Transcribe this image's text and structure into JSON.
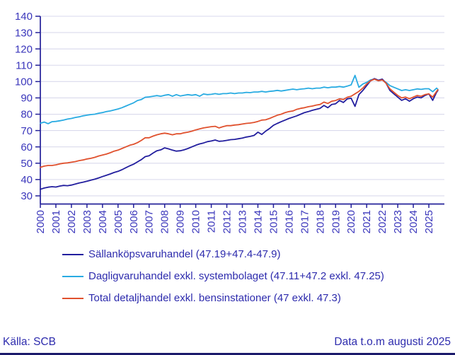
{
  "chart_data": {
    "type": "line",
    "title": "",
    "xlabel": "",
    "ylabel": "",
    "grid": "horizontal",
    "legend_position": "bottom-left",
    "ylim": [
      25,
      140
    ],
    "xlim": [
      2000,
      2026
    ],
    "yticks": [
      30,
      40,
      50,
      60,
      70,
      80,
      90,
      100,
      110,
      120,
      130,
      140
    ],
    "xticks": [
      2000,
      2001,
      2002,
      2003,
      2004,
      2005,
      2006,
      2007,
      2008,
      2009,
      2010,
      2011,
      2012,
      2013,
      2014,
      2015,
      2016,
      2017,
      2018,
      2019,
      2020,
      2021,
      2022,
      2023,
      2024,
      2025
    ],
    "x_note": "monthly index series shown; sampled quarterly here, last point = aug 2025",
    "x": [
      2000,
      2000.25,
      2000.5,
      2000.75,
      2001,
      2001.25,
      2001.5,
      2001.75,
      2002,
      2002.25,
      2002.5,
      2002.75,
      2003,
      2003.25,
      2003.5,
      2003.75,
      2004,
      2004.25,
      2004.5,
      2004.75,
      2005,
      2005.25,
      2005.5,
      2005.75,
      2006,
      2006.25,
      2006.5,
      2006.75,
      2007,
      2007.25,
      2007.5,
      2007.75,
      2008,
      2008.25,
      2008.5,
      2008.75,
      2009,
      2009.25,
      2009.5,
      2009.75,
      2010,
      2010.25,
      2010.5,
      2010.75,
      2011,
      2011.25,
      2011.5,
      2011.75,
      2012,
      2012.25,
      2012.5,
      2012.75,
      2013,
      2013.25,
      2013.5,
      2013.75,
      2014,
      2014.25,
      2014.5,
      2014.75,
      2015,
      2015.25,
      2015.5,
      2015.75,
      2016,
      2016.25,
      2016.5,
      2016.75,
      2017,
      2017.25,
      2017.5,
      2017.75,
      2018,
      2018.25,
      2018.5,
      2018.75,
      2019,
      2019.25,
      2019.5,
      2019.75,
      2020,
      2020.25,
      2020.5,
      2020.75,
      2021,
      2021.25,
      2021.5,
      2021.75,
      2022,
      2022.25,
      2022.5,
      2022.75,
      2023,
      2023.25,
      2023.5,
      2023.75,
      2024,
      2024.25,
      2024.5,
      2024.75,
      2025,
      2025.25,
      2025.5,
      2025.58
    ],
    "series": [
      {
        "name": "Sällanköpsvaruhandel (47.19+47.4-47.9)",
        "color": "#221e9e",
        "values": [
          34.0,
          34.8,
          35.3,
          35.6,
          35.4,
          36.0,
          36.4,
          36.2,
          36.6,
          37.2,
          37.9,
          38.4,
          39.0,
          39.6,
          40.2,
          41.0,
          41.8,
          42.6,
          43.4,
          44.3,
          45.0,
          46.0,
          47.2,
          48.4,
          49.4,
          50.8,
          52.2,
          54.0,
          54.6,
          56.2,
          57.6,
          58.2,
          59.4,
          58.8,
          58.0,
          57.4,
          57.6,
          58.2,
          59.0,
          60.0,
          61.0,
          61.8,
          62.4,
          63.2,
          63.6,
          64.2,
          63.4,
          63.6,
          64.0,
          64.4,
          64.6,
          65.0,
          65.4,
          66.0,
          66.4,
          67.0,
          69.0,
          67.6,
          69.6,
          71.2,
          73.2,
          74.4,
          75.4,
          76.4,
          77.4,
          78.2,
          79.0,
          80.0,
          81.0,
          81.6,
          82.4,
          83.0,
          83.6,
          85.4,
          84.0,
          86.0,
          86.4,
          88.4,
          87.2,
          89.4,
          89.8,
          84.8,
          92.0,
          94.5,
          97.5,
          100.5,
          101.8,
          100.8,
          101.5,
          99.0,
          94.5,
          92.5,
          90.5,
          88.5,
          89.5,
          88.0,
          89.5,
          90.5,
          90.0,
          91.5,
          92.5,
          88.5,
          93.5,
          94.5
        ]
      },
      {
        "name": "Dagligvaruhandel exkl. systembolaget (47.11+47.2 exkl. 47.25)",
        "color": "#29abe2",
        "values": [
          74.5,
          75.2,
          74.2,
          75.4,
          75.6,
          76.0,
          76.4,
          77.0,
          77.4,
          78.0,
          78.4,
          79.0,
          79.4,
          79.8,
          80.0,
          80.6,
          81.0,
          81.6,
          82.0,
          82.6,
          83.2,
          84.0,
          85.0,
          86.0,
          87.0,
          88.4,
          89.0,
          90.4,
          90.6,
          91.0,
          91.4,
          91.0,
          91.6,
          92.0,
          91.0,
          92.0,
          91.2,
          91.6,
          92.0,
          91.6,
          92.0,
          91.0,
          92.4,
          92.0,
          92.2,
          92.6,
          92.2,
          92.6,
          92.6,
          93.0,
          92.6,
          93.0,
          93.0,
          93.4,
          93.2,
          93.6,
          93.6,
          94.0,
          93.6,
          94.0,
          94.2,
          94.6,
          94.2,
          94.6,
          95.0,
          95.4,
          95.0,
          95.4,
          95.6,
          96.0,
          95.6,
          96.0,
          96.0,
          96.6,
          96.2,
          96.6,
          96.6,
          97.0,
          96.6,
          97.2,
          98.0,
          103.8,
          96.5,
          98.5,
          99.5,
          101.0,
          101.5,
          100.5,
          101.0,
          99.5,
          97.5,
          96.5,
          95.5,
          94.5,
          95.0,
          94.5,
          95.0,
          95.5,
          95.2,
          95.6,
          95.6,
          93.8,
          96.0,
          95.2
        ]
      },
      {
        "name": "Total detaljhandel exkl. bensinstationer (47 exkl. 47.3)",
        "color": "#e0512e",
        "values": [
          47.5,
          48.2,
          48.6,
          48.6,
          49.0,
          49.6,
          50.0,
          50.2,
          50.6,
          51.0,
          51.6,
          52.0,
          52.6,
          53.0,
          53.6,
          54.4,
          55.0,
          55.6,
          56.4,
          57.4,
          58.0,
          59.0,
          60.0,
          61.0,
          61.6,
          62.6,
          64.0,
          65.6,
          65.6,
          66.6,
          67.4,
          68.0,
          68.4,
          68.0,
          67.4,
          68.0,
          68.0,
          68.6,
          69.0,
          69.6,
          70.4,
          71.0,
          71.6,
          72.0,
          72.4,
          72.6,
          71.6,
          72.4,
          73.0,
          73.0,
          73.4,
          73.6,
          74.0,
          74.4,
          74.6,
          75.0,
          75.6,
          76.4,
          76.6,
          77.4,
          78.4,
          79.4,
          80.0,
          81.0,
          81.6,
          82.0,
          83.0,
          83.6,
          84.0,
          84.6,
          85.0,
          85.6,
          86.0,
          87.4,
          86.6,
          88.0,
          88.4,
          89.4,
          89.0,
          90.4,
          91.0,
          92.5,
          94.0,
          96.0,
          98.5,
          100.5,
          101.5,
          100.5,
          101.0,
          99.0,
          95.5,
          93.5,
          91.5,
          90.0,
          90.5,
          89.5,
          90.5,
          91.5,
          91.0,
          92.0,
          92.5,
          90.5,
          94.0,
          95.0
        ]
      }
    ]
  },
  "colors": {
    "axis": "#24219a",
    "grid": "#d9d9ec",
    "tick_label": "#3a36bb",
    "legend_text": "#2d2bad",
    "bottom_rule": "#1b1a6b"
  },
  "footer": {
    "source": "Källa: SCB",
    "note": "Data t.o.m augusti 2025"
  }
}
